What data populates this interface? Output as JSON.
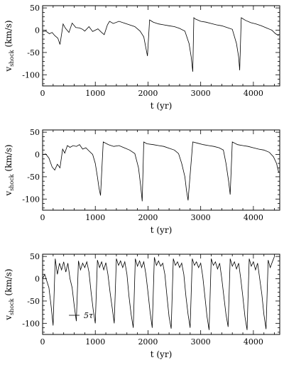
{
  "chart_data": [
    {
      "type": "line",
      "xlabel": "t (yr)",
      "ylabel_main": "v",
      "ylabel_sub": "shock",
      "ylabel_unit": "(km/s)",
      "xlim": [
        0,
        4500
      ],
      "ylim": [
        -125,
        55
      ],
      "xticks": [
        0,
        1000,
        2000,
        3000,
        4000
      ],
      "yticks": [
        50,
        0,
        -50,
        -100
      ],
      "grid": false,
      "series": [
        {
          "x": [
            0,
            60,
            130,
            180,
            230,
            290,
            330,
            390,
            430,
            500,
            560,
            630,
            700,
            760,
            800,
            880,
            950,
            1050,
            1120,
            1170,
            1230,
            1270,
            1340,
            1450,
            1550,
            1650,
            1750,
            1850,
            1920,
            1960,
            1990,
            2030,
            2100,
            2200,
            2300,
            2400,
            2500,
            2600,
            2700,
            2780,
            2820,
            2850,
            2870,
            2900,
            3000,
            3100,
            3200,
            3300,
            3400,
            3500,
            3600,
            3680,
            3720,
            3740,
            3770,
            3850,
            3950,
            4050,
            4150,
            4250,
            4350,
            4420,
            4480
          ],
          "y": [
            -3,
            -2,
            -8,
            -5,
            -12,
            -18,
            -32,
            14,
            5,
            -5,
            16,
            6,
            5,
            2,
            -2,
            8,
            -3,
            3,
            -5,
            -10,
            12,
            20,
            15,
            20,
            16,
            12,
            8,
            -2,
            -15,
            -40,
            -58,
            23,
            18,
            14,
            12,
            10,
            8,
            4,
            -2,
            -30,
            -60,
            -93,
            28,
            25,
            20,
            18,
            15,
            12,
            10,
            6,
            2,
            -30,
            -60,
            -90,
            28,
            22,
            17,
            14,
            10,
            5,
            0,
            -8,
            -12
          ]
        }
      ]
    },
    {
      "type": "line",
      "xlabel": "t (yr)",
      "ylabel_main": "v",
      "ylabel_sub": "shock",
      "ylabel_unit": "(km/s)",
      "xlim": [
        0,
        4500
      ],
      "ylim": [
        -125,
        55
      ],
      "xticks": [
        0,
        1000,
        2000,
        3000,
        4000
      ],
      "yticks": [
        50,
        0,
        -50,
        -100
      ],
      "grid": false,
      "series": [
        {
          "x": [
            0,
            60,
            120,
            180,
            230,
            280,
            330,
            380,
            420,
            470,
            520,
            580,
            640,
            700,
            760,
            820,
            880,
            950,
            1000,
            1040,
            1070,
            1100,
            1150,
            1250,
            1350,
            1450,
            1550,
            1650,
            1750,
            1820,
            1860,
            1890,
            1920,
            1980,
            2100,
            2200,
            2300,
            2400,
            2500,
            2580,
            2640,
            2700,
            2730,
            2760,
            2850,
            2950,
            3050,
            3150,
            3250,
            3350,
            3430,
            3480,
            3530,
            3560,
            3600,
            3700,
            3800,
            3900,
            4000,
            4100,
            4200,
            4300,
            4380,
            4440,
            4480
          ],
          "y": [
            0,
            1,
            -8,
            -28,
            -35,
            -22,
            -30,
            12,
            3,
            20,
            16,
            20,
            18,
            22,
            12,
            15,
            8,
            0,
            -20,
            -50,
            -75,
            -92,
            28,
            22,
            18,
            20,
            15,
            10,
            2,
            -30,
            -70,
            -105,
            28,
            24,
            22,
            20,
            18,
            14,
            10,
            2,
            -20,
            -50,
            -80,
            -103,
            28,
            25,
            22,
            20,
            18,
            15,
            10,
            -20,
            -60,
            -90,
            28,
            22,
            20,
            18,
            15,
            12,
            10,
            5,
            -5,
            -20,
            -40
          ]
        }
      ]
    },
    {
      "type": "line",
      "xlabel": "t (yr)",
      "ylabel_main": "v",
      "ylabel_sub": "shock",
      "ylabel_unit": "(km/s)",
      "xlim": [
        0,
        4500
      ],
      "ylim": [
        -125,
        55
      ],
      "xticks": [
        0,
        1000,
        2000,
        3000,
        4000
      ],
      "yticks": [
        50,
        0,
        -50,
        -100
      ],
      "grid": false,
      "legend_label": "5τ",
      "legend_x": [
        500,
        700
      ],
      "legend_y": -82,
      "series": [
        {
          "x": [
            0,
            40,
            80,
            120,
            160,
            200,
            240,
            280,
            320,
            360,
            400,
            440,
            480,
            520,
            560,
            600,
            640,
            680,
            720,
            760,
            800,
            840,
            880,
            920,
            960,
            1000,
            1040,
            1080,
            1120,
            1160,
            1200,
            1240,
            1280,
            1320,
            1360,
            1400,
            1440,
            1480,
            1520,
            1560,
            1600,
            1640,
            1680,
            1720,
            1760,
            1800,
            1840,
            1880,
            1920,
            1960,
            2000,
            2040,
            2080,
            2120,
            2160,
            2200,
            2240,
            2280,
            2320,
            2360,
            2400,
            2440,
            2480,
            2520,
            2560,
            2600,
            2640,
            2680,
            2720,
            2760,
            2800,
            2840,
            2880,
            2920,
            2960,
            3000,
            3040,
            3080,
            3120,
            3160,
            3200,
            3240,
            3280,
            3320,
            3360,
            3400,
            3440,
            3480,
            3520,
            3560,
            3600,
            3640,
            3680,
            3720,
            3760,
            3800,
            3840,
            3880,
            3920,
            3960,
            4000,
            4040,
            4080,
            4120,
            4160,
            4200,
            4240,
            4280,
            4320,
            4360,
            4400
          ],
          "y": [
            0,
            10,
            -5,
            -20,
            -60,
            -105,
            45,
            10,
            35,
            20,
            38,
            15,
            35,
            0,
            -20,
            -60,
            -95,
            40,
            20,
            35,
            25,
            38,
            15,
            -30,
            -70,
            -100,
            42,
            25,
            38,
            20,
            36,
            10,
            -30,
            -65,
            -100,
            45,
            30,
            40,
            25,
            38,
            10,
            -40,
            -80,
            -110,
            45,
            28,
            40,
            25,
            38,
            10,
            -30,
            -75,
            -110,
            48,
            30,
            40,
            28,
            35,
            10,
            -40,
            -85,
            -112,
            45,
            30,
            38,
            25,
            35,
            10,
            -40,
            -80,
            -110,
            45,
            30,
            38,
            25,
            35,
            5,
            -40,
            -85,
            -115,
            45,
            30,
            38,
            22,
            35,
            0,
            -40,
            -80,
            -108,
            45,
            28,
            38,
            22,
            35,
            0,
            -40,
            -85,
            -115,
            45,
            28,
            38,
            20,
            35,
            0,
            -35,
            -80,
            -113,
            42,
            25,
            38,
            50
          ]
        }
      ]
    }
  ]
}
